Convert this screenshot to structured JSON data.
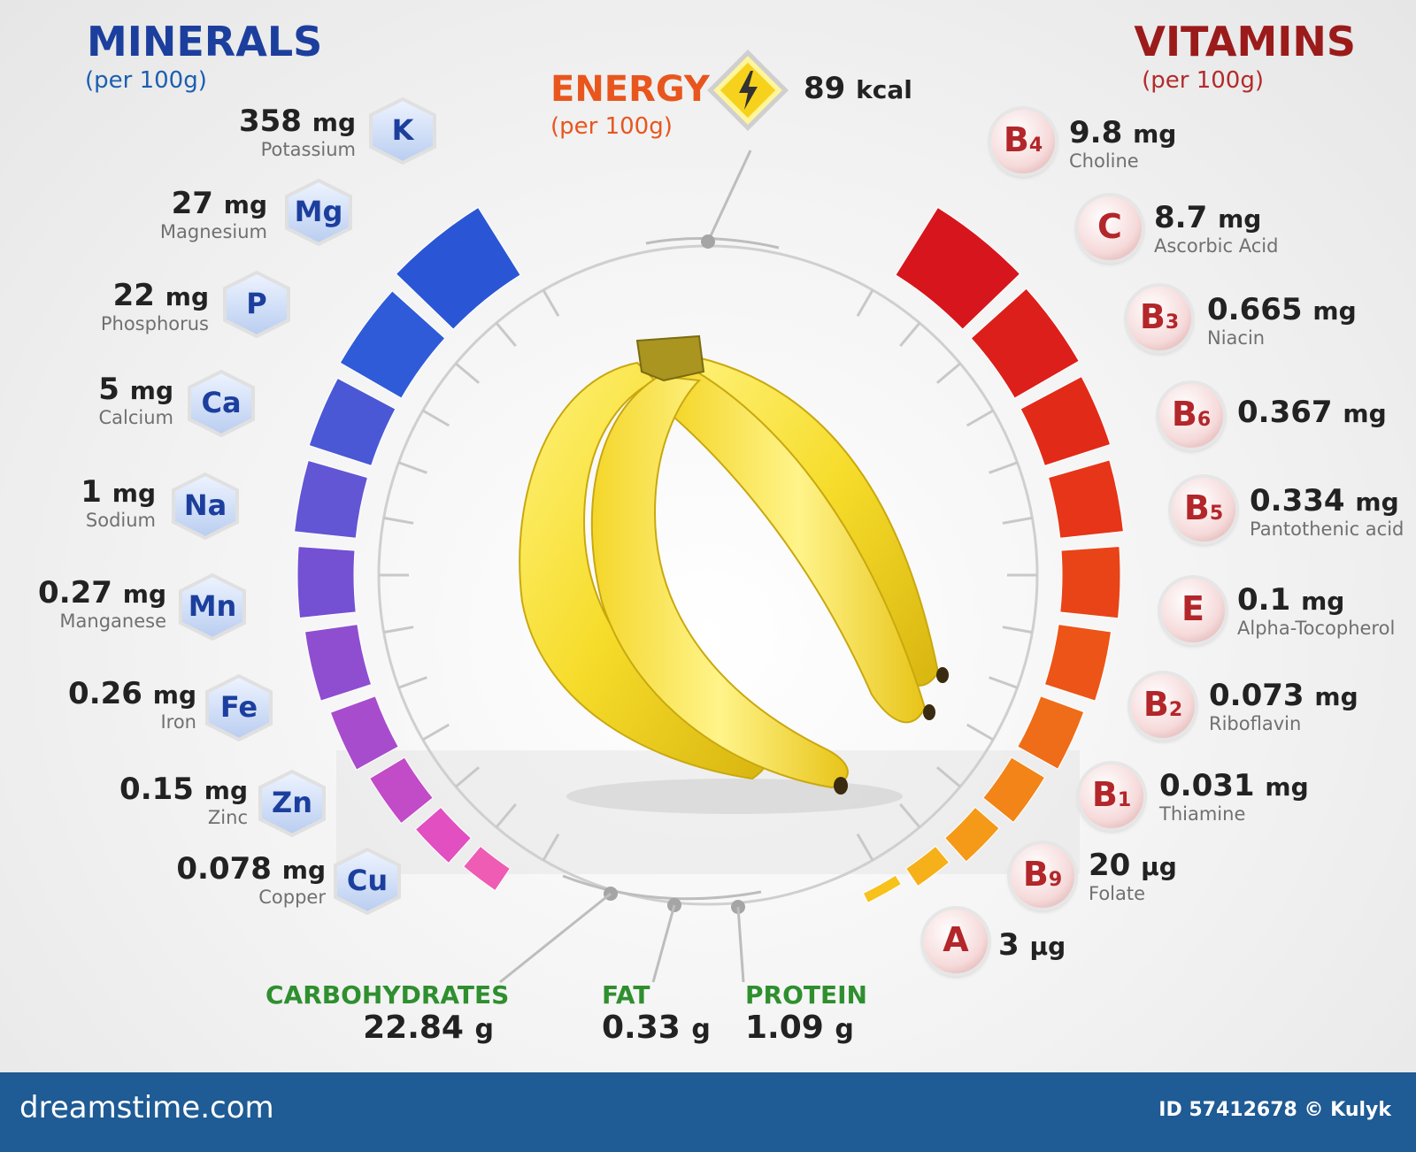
{
  "minerals": {
    "title": "MINERALS",
    "subtitle": "(per 100g)",
    "color": "#1c3f9e",
    "items": [
      {
        "symbol": "K",
        "value": "358",
        "unit": "mg",
        "name": "Potassium"
      },
      {
        "symbol": "Mg",
        "value": "27",
        "unit": "mg",
        "name": "Magnesium"
      },
      {
        "symbol": "P",
        "value": "22",
        "unit": "mg",
        "name": "Phosphorus"
      },
      {
        "symbol": "Ca",
        "value": "5",
        "unit": "mg",
        "name": "Calcium"
      },
      {
        "symbol": "Na",
        "value": "1",
        "unit": "mg",
        "name": "Sodium"
      },
      {
        "symbol": "Mn",
        "value": "0.27",
        "unit": "mg",
        "name": "Manganese"
      },
      {
        "symbol": "Fe",
        "value": "0.26",
        "unit": "mg",
        "name": "Iron"
      },
      {
        "symbol": "Zn",
        "value": "0.15",
        "unit": "mg",
        "name": "Zinc"
      },
      {
        "symbol": "Cu",
        "value": "0.078",
        "unit": "mg",
        "name": "Copper"
      }
    ]
  },
  "vitamins": {
    "title": "VITAMINS",
    "subtitle": "(per 100g)",
    "color": "#9b1b1b",
    "items": [
      {
        "symbol": "B",
        "sub": "4",
        "value": "9.8",
        "unit": "mg",
        "name": "Choline"
      },
      {
        "symbol": "C",
        "sub": "",
        "value": "8.7",
        "unit": "mg",
        "name": "Ascorbic Acid"
      },
      {
        "symbol": "B",
        "sub": "3",
        "value": "0.665",
        "unit": "mg",
        "name": "Niacin"
      },
      {
        "symbol": "B",
        "sub": "6",
        "value": "0.367",
        "unit": "mg",
        "name": ""
      },
      {
        "symbol": "B",
        "sub": "5",
        "value": "0.334",
        "unit": "mg",
        "name": "Pantothenic acid"
      },
      {
        "symbol": "E",
        "sub": "",
        "value": "0.1",
        "unit": "mg",
        "name": "Alpha-Tocopherol"
      },
      {
        "symbol": "B",
        "sub": "2",
        "value": "0.073",
        "unit": "mg",
        "name": "Riboflavin"
      },
      {
        "symbol": "B",
        "sub": "1",
        "value": "0.031",
        "unit": "mg",
        "name": "Thiamine"
      },
      {
        "symbol": "B",
        "sub": "9",
        "value": "20",
        "unit": "µg",
        "name": "Folate"
      },
      {
        "symbol": "A",
        "sub": "",
        "value": "3",
        "unit": "µg",
        "name": ""
      }
    ]
  },
  "energy": {
    "title": "ENERGY",
    "subtitle": "(per 100g)",
    "value": "89",
    "unit": "kcal",
    "icon": "lightning-icon",
    "color": "#e8561e"
  },
  "macros": [
    {
      "name": "CARBOHYDRATES",
      "value": "22.84",
      "unit": "g"
    },
    {
      "name": "FAT",
      "value": "0.33",
      "unit": "g"
    },
    {
      "name": "PROTEIN",
      "value": "1.09",
      "unit": "g"
    }
  ],
  "footer": {
    "brand": "dreamstime.com",
    "credit": "ID 57412678 © Kulyk"
  }
}
